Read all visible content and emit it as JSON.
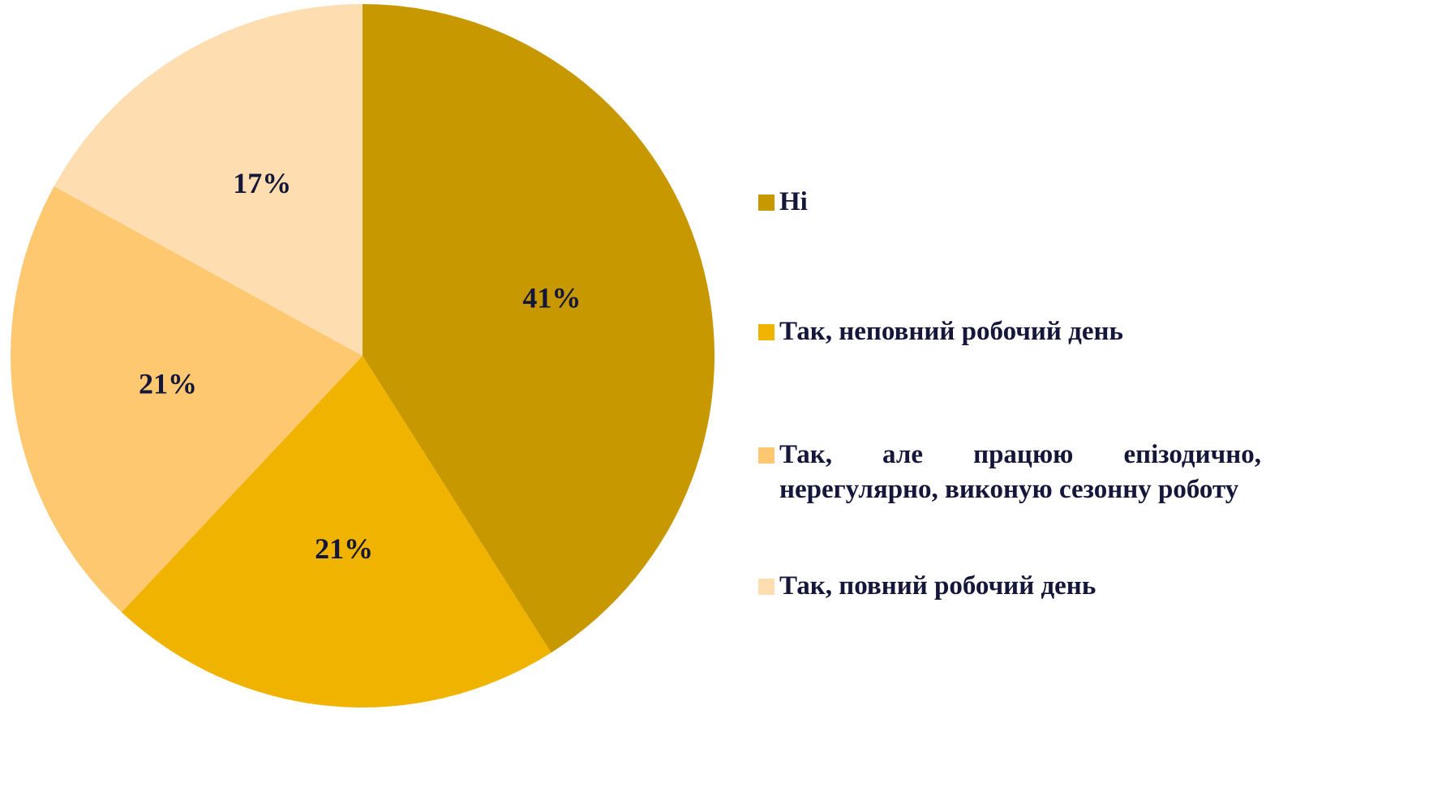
{
  "chart_data": {
    "type": "pie",
    "categories": [
      "Ні",
      "Так, неповний робочий день",
      "Так, але працюю епізодично, нерегулярно, виконую сезонну роботу",
      "Так, повний робочий день"
    ],
    "values": [
      41,
      21,
      21,
      17
    ],
    "value_labels": [
      "41%",
      "21%",
      "21%",
      "17%"
    ],
    "colors": [
      "#c89800",
      "#f0b400",
      "#fdc870",
      "#feddb0"
    ]
  }
}
